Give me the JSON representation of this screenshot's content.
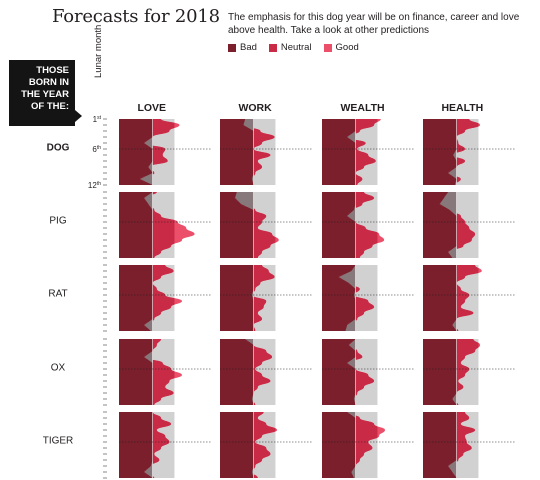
{
  "header": {
    "title": "Forecasts for 2018",
    "subtitle": "The emphasis for this dog year will be on finance, career and love above health. Take a look at other predictions"
  },
  "legend": [
    {
      "label": "Bad",
      "color": "#7a1f2b"
    },
    {
      "label": "Neutral",
      "color": "#c92b47"
    },
    {
      "label": "Good",
      "color": "#ec4f6a"
    }
  ],
  "sidebar": {
    "born_lines": [
      "THOSE",
      "BORN IN",
      "THE YEAR",
      "OF THE:"
    ],
    "axis_label": "Lunar month"
  },
  "chart_data": {
    "type": "area",
    "columns": [
      "LOVE",
      "WORK",
      "WEALTH",
      "HEALTH"
    ],
    "rows": [
      "DOG",
      "PIG",
      "RAT",
      "OX",
      "TIGER"
    ],
    "y_ticks": [
      {
        "month": 1,
        "text": "1",
        "sup": "st"
      },
      {
        "month": 6,
        "text": "6",
        "sup": "th"
      },
      {
        "month": 12,
        "text": "12",
        "sup": "th"
      }
    ],
    "months": [
      1,
      2,
      3,
      4,
      5,
      6,
      7,
      8,
      9,
      10,
      11,
      12
    ],
    "x_scale": {
      "bad_end": 0.4,
      "neutral_end": 0.66,
      "max": 1
    },
    "bands": [
      {
        "name": "Bad",
        "from": 0,
        "to": 0.4,
        "color": "#7a1f2b"
      },
      {
        "name": "Neutral",
        "from": 0.4,
        "to": 0.66,
        "color": "#d1d1d1"
      },
      {
        "name": "Good",
        "from": 0.66,
        "to": 1,
        "color": "#ffffff"
      }
    ],
    "colors": {
      "bad": "#7a1f2b",
      "neutral": "#c92b47",
      "good": "#ec4f6a",
      "neutral_band": "#d1d1d1",
      "dip": "#8a8a8a"
    },
    "series": {
      "DOG": {
        "LOVE": [
          0.5,
          0.72,
          0.6,
          0.4,
          0.3,
          0.55,
          0.52,
          0.58,
          0.35,
          0.42,
          0.25,
          0.4
        ],
        "WORK": [
          0.3,
          0.28,
          0.48,
          0.65,
          0.5,
          0.4,
          0.6,
          0.45,
          0.5,
          0.42,
          0.38,
          0.4
        ],
        "WEALTH": [
          0.7,
          0.62,
          0.45,
          0.3,
          0.52,
          0.42,
          0.55,
          0.64,
          0.5,
          0.4,
          0.48,
          0.42
        ],
        "HEALTH": [
          0.55,
          0.68,
          0.5,
          0.4,
          0.42,
          0.5,
          0.36,
          0.5,
          0.4,
          0.3,
          0.45,
          0.38
        ]
      },
      "PIG": {
        "LOVE": [
          0.45,
          0.3,
          0.35,
          0.42,
          0.5,
          0.7,
          0.8,
          0.9,
          0.75,
          0.62,
          0.5,
          0.42
        ],
        "WORK": [
          0.2,
          0.18,
          0.25,
          0.42,
          0.55,
          0.5,
          0.45,
          0.62,
          0.7,
          0.6,
          0.5,
          0.45
        ],
        "WEALTH": [
          0.5,
          0.62,
          0.48,
          0.38,
          0.3,
          0.4,
          0.52,
          0.68,
          0.74,
          0.6,
          0.5,
          0.45
        ],
        "HEALTH": [
          0.3,
          0.25,
          0.2,
          0.32,
          0.45,
          0.5,
          0.55,
          0.62,
          0.58,
          0.48,
          0.3,
          0.35
        ]
      },
      "RAT": {
        "LOVE": [
          0.55,
          0.65,
          0.5,
          0.4,
          0.45,
          0.55,
          0.75,
          0.62,
          0.5,
          0.42,
          0.3,
          0.38
        ],
        "WORK": [
          0.5,
          0.58,
          0.65,
          0.48,
          0.42,
          0.38,
          0.55,
          0.52,
          0.45,
          0.5,
          0.4,
          0.42
        ],
        "WEALTH": [
          0.4,
          0.35,
          0.2,
          0.32,
          0.45,
          0.38,
          0.55,
          0.62,
          0.5,
          0.42,
          0.3,
          0.28
        ],
        "HEALTH": [
          0.62,
          0.7,
          0.5,
          0.4,
          0.45,
          0.55,
          0.5,
          0.45,
          0.6,
          0.4,
          0.35,
          0.42
        ]
      },
      "OX": {
        "LOVE": [
          0.5,
          0.45,
          0.4,
          0.3,
          0.52,
          0.62,
          0.75,
          0.6,
          0.55,
          0.65,
          0.5,
          0.42
        ],
        "WORK": [
          0.3,
          0.4,
          0.55,
          0.62,
          0.5,
          0.42,
          0.5,
          0.6,
          0.45,
          0.4,
          0.38,
          0.42
        ],
        "WEALTH": [
          0.4,
          0.32,
          0.42,
          0.48,
          0.3,
          0.4,
          0.55,
          0.62,
          0.5,
          0.42,
          0.38,
          0.4
        ],
        "HEALTH": [
          0.6,
          0.68,
          0.62,
          0.5,
          0.45,
          0.55,
          0.5,
          0.42,
          0.48,
          0.4,
          0.35,
          0.42
        ]
      },
      "TIGER": {
        "LOVE": [
          0.4,
          0.5,
          0.62,
          0.45,
          0.55,
          0.6,
          0.5,
          0.42,
          0.48,
          0.38,
          0.3,
          0.42
        ],
        "WORK": [
          0.52,
          0.45,
          0.55,
          0.68,
          0.5,
          0.42,
          0.55,
          0.6,
          0.5,
          0.42,
          0.38,
          0.45
        ],
        "WEALTH": [
          0.3,
          0.45,
          0.62,
          0.75,
          0.68,
          0.55,
          0.6,
          0.5,
          0.45,
          0.4,
          0.35,
          0.38
        ],
        "HEALTH": [
          0.5,
          0.55,
          0.45,
          0.62,
          0.5,
          0.52,
          0.58,
          0.48,
          0.42,
          0.3,
          0.35,
          0.4
        ]
      }
    }
  }
}
